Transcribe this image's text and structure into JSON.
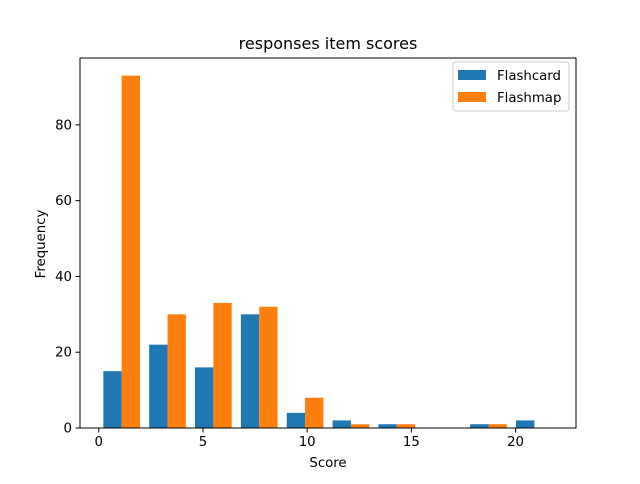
{
  "chart_data": {
    "type": "bar",
    "title": "responses item scores",
    "xlabel": "Score",
    "ylabel": "Frequency",
    "xlim": [
      -0.9,
      22.9
    ],
    "ylim": [
      0,
      97.65
    ],
    "xticks": [
      0,
      5,
      10,
      15,
      20
    ],
    "yticks": [
      0,
      20,
      40,
      60,
      80
    ],
    "xtick_labels": [
      "0",
      "5",
      "10",
      "15",
      "20"
    ],
    "ytick_labels": [
      "0",
      "20",
      "40",
      "60",
      "80"
    ],
    "legend": {
      "placement": "top-right"
    },
    "grid": false,
    "bin_edges": [
      0,
      2.2,
      4.4,
      6.6,
      8.8,
      11.0,
      13.2,
      15.4,
      17.6,
      19.8,
      22.0
    ],
    "series": [
      {
        "name": "Flashcard",
        "color": "#1f77b4",
        "values": [
          15,
          22,
          16,
          30,
          4,
          2,
          1,
          0,
          1,
          2
        ]
      },
      {
        "name": "Flashmap",
        "color": "#ff7f0e",
        "values": [
          93,
          30,
          33,
          32,
          8,
          1,
          1,
          0,
          1,
          0
        ]
      }
    ]
  }
}
